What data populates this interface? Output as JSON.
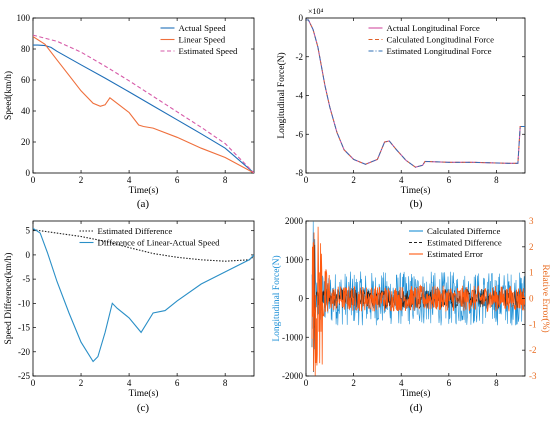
{
  "colors": {
    "actual_speed": "#1f6fb8",
    "linear_speed": "#ef6f3c",
    "estimated_speed": "#d65aa8",
    "actual_force": "#d14fa0",
    "calculated_force": "#e0602a",
    "estimated_force": "#2f6fb5",
    "estimated_difference": "#222222",
    "difference_linear_actual": "#2a8fc7",
    "calculated_differnce": "#1c8fd6",
    "estimated_error": "#ff5a10",
    "right_axis": "#e8691d",
    "left_axis_blue": "#1c8fd6"
  },
  "chart_data": [
    {
      "type": "line",
      "label": "(a)",
      "xlabel": "Time(s)",
      "ylabel": "Speed(km/h)",
      "xlim": [
        0,
        9.2
      ],
      "ylim": [
        0,
        100
      ],
      "xticks": [
        0,
        2,
        4,
        6,
        8
      ],
      "yticks": [
        0,
        20,
        40,
        60,
        80,
        100
      ],
      "legend_position": "top-right",
      "series": [
        {
          "name": "Actual Speed",
          "color_key": "actual_speed",
          "dash": "solid",
          "x": [
            0,
            0.2,
            0.5,
            0.75,
            1.0,
            2.0,
            3.0,
            4.0,
            5.0,
            6.0,
            7.0,
            8.0,
            9.2
          ],
          "y": [
            82.5,
            82.5,
            82.2,
            81,
            78.5,
            69.8,
            61.2,
            52.3,
            43.3,
            34.3,
            25.3,
            16.0,
            0
          ]
        },
        {
          "name": "Linear Speed",
          "color_key": "linear_speed",
          "dash": "solid",
          "x": [
            0,
            0.5,
            1.0,
            1.5,
            2.0,
            2.5,
            2.8,
            3.0,
            3.2,
            3.5,
            4.0,
            4.4,
            4.6,
            5.0,
            6.0,
            7.0,
            8.0,
            9.2
          ],
          "y": [
            88,
            83,
            73,
            63,
            53,
            45,
            43,
            44,
            48.5,
            45,
            39,
            31,
            30,
            29,
            23,
            16,
            10,
            0
          ]
        },
        {
          "name": "Estimated Speed",
          "color_key": "estimated_speed",
          "dash": "dashed",
          "x": [
            0,
            0.5,
            1.0,
            2.0,
            3.0,
            4.0,
            5.0,
            6.0,
            7.0,
            8.0,
            9.2
          ],
          "y": [
            89,
            87,
            85,
            78,
            69,
            59.5,
            49.5,
            39.5,
            29.5,
            19,
            0
          ]
        }
      ]
    },
    {
      "type": "line",
      "label": "(b)",
      "xlabel": "Time(s)",
      "ylabel": "Longitudinal Force(N)",
      "exponent": "×10⁴",
      "xlim": [
        0,
        9.2
      ],
      "ylim": [
        -8,
        0
      ],
      "xticks": [
        0,
        2,
        4,
        6,
        8
      ],
      "yticks": [
        -8,
        -6,
        -4,
        -2,
        0
      ],
      "legend_position": "top-right",
      "series": [
        {
          "name": "Actual Longitudinal Force",
          "color_key": "actual_force",
          "dash": "solid",
          "x": [
            0,
            0.1,
            0.3,
            0.5,
            0.8,
            1.0,
            1.3,
            1.6,
            2.0,
            2.5,
            3.0,
            3.3,
            3.5,
            3.8,
            4.2,
            4.6,
            4.9,
            5.0,
            6.0,
            7.0,
            8.5,
            8.9,
            9.0,
            9.2
          ],
          "y": [
            -0.1,
            -0.1,
            -0.6,
            -1.5,
            -3.5,
            -4.6,
            -5.9,
            -6.8,
            -7.3,
            -7.55,
            -7.3,
            -6.4,
            -6.35,
            -6.8,
            -7.35,
            -7.7,
            -7.6,
            -7.4,
            -7.45,
            -7.45,
            -7.5,
            -7.5,
            -5.6,
            -5.6
          ]
        },
        {
          "name": "Calculated Longitudinal Force",
          "color_key": "calculated_force",
          "dash": "dashed",
          "x": [
            0,
            0.1,
            0.3,
            0.5,
            0.8,
            1.0,
            1.3,
            1.6,
            2.0,
            2.5,
            3.0,
            3.3,
            3.5,
            3.8,
            4.2,
            4.6,
            4.9,
            5.0,
            6.0,
            7.0,
            8.5,
            8.9,
            9.0,
            9.2
          ],
          "y": [
            -0.1,
            -0.1,
            -0.6,
            -1.5,
            -3.5,
            -4.6,
            -5.9,
            -6.8,
            -7.3,
            -7.55,
            -7.3,
            -6.4,
            -6.35,
            -6.8,
            -7.35,
            -7.7,
            -7.6,
            -7.4,
            -7.45,
            -7.45,
            -7.5,
            -7.5,
            -5.6,
            -5.6
          ]
        },
        {
          "name": "Estimated Longitudinal Force",
          "color_key": "estimated_force",
          "dash": "dashdot",
          "x": [
            0,
            0.1,
            0.3,
            0.5,
            0.8,
            1.0,
            1.3,
            1.6,
            2.0,
            2.5,
            3.0,
            3.3,
            3.5,
            3.8,
            4.2,
            4.6,
            4.9,
            5.0,
            6.0,
            7.0,
            8.5,
            8.9,
            9.0,
            9.2
          ],
          "y": [
            -0.1,
            -0.1,
            -0.6,
            -1.5,
            -3.5,
            -4.6,
            -5.9,
            -6.8,
            -7.3,
            -7.55,
            -7.3,
            -6.4,
            -6.35,
            -6.8,
            -7.35,
            -7.7,
            -7.6,
            -7.4,
            -7.45,
            -7.45,
            -7.5,
            -7.5,
            -5.6,
            -5.6
          ]
        }
      ]
    },
    {
      "type": "line",
      "label": "(c)",
      "xlabel": "Time(s)",
      "ylabel": "Speed Difference(km/h)",
      "xlim": [
        0,
        9.2
      ],
      "ylim": [
        -25,
        7
      ],
      "xticks": [
        0,
        2,
        4,
        6,
        8
      ],
      "yticks": [
        -25,
        -20,
        -15,
        -10,
        -5,
        0,
        5
      ],
      "legend_position": "top-right",
      "series": [
        {
          "name": "Estimated Difference",
          "color_key": "estimated_difference",
          "dash": "dotted-markers",
          "x": [
            0,
            1,
            2,
            3,
            4,
            5,
            6,
            7,
            8,
            9,
            9.2
          ],
          "y": [
            5.2,
            4.5,
            3.8,
            2.8,
            1.5,
            0.3,
            -0.5,
            -1.0,
            -1.3,
            -1.0,
            -0.3
          ]
        },
        {
          "name": "Difference of Linear-Actual Speed",
          "color_key": "difference_linear_actual",
          "dash": "solid",
          "x": [
            0,
            0.3,
            0.6,
            1.0,
            1.5,
            2.0,
            2.5,
            2.7,
            3.0,
            3.3,
            3.5,
            4.0,
            4.5,
            5.0,
            5.5,
            6.0,
            7.0,
            8.0,
            9.0,
            9.2
          ],
          "y": [
            5.5,
            4.5,
            0.5,
            -5.5,
            -12,
            -18,
            -22,
            -21,
            -16,
            -10,
            -11,
            -13,
            -16,
            -12,
            -11.5,
            -9.5,
            -6,
            -3.5,
            -1,
            0
          ]
        }
      ]
    },
    {
      "type": "line",
      "label": "(d)",
      "xlabel": "Time(s)",
      "ylabel": "Longitudinal Force(N)",
      "ylabel_right": "Relative Error(%)",
      "xlim": [
        0,
        9.2
      ],
      "ylim": [
        -2000,
        2000
      ],
      "ylim_right": [
        -3,
        3
      ],
      "xticks": [
        0,
        2,
        4,
        6,
        8
      ],
      "yticks": [
        -2000,
        -1000,
        0,
        1000,
        2000
      ],
      "yticks_right": [
        -3,
        -2,
        -1,
        0,
        1,
        2,
        3
      ],
      "legend_position": "top-right",
      "series": [
        {
          "name": "Calculated Differnce",
          "color_key": "calculated_differnce",
          "dash": "solid",
          "axis": "left",
          "band": [
            -700,
            700
          ]
        },
        {
          "name": "Estimated Difference",
          "color_key": "estimated_difference",
          "dash": "dashed",
          "axis": "left",
          "band": [
            -250,
            250
          ]
        },
        {
          "name": "Estimated Error",
          "color_key": "estimated_error",
          "dash": "solid",
          "axis": "right",
          "band": [
            -0.5,
            0.5
          ]
        }
      ]
    }
  ]
}
